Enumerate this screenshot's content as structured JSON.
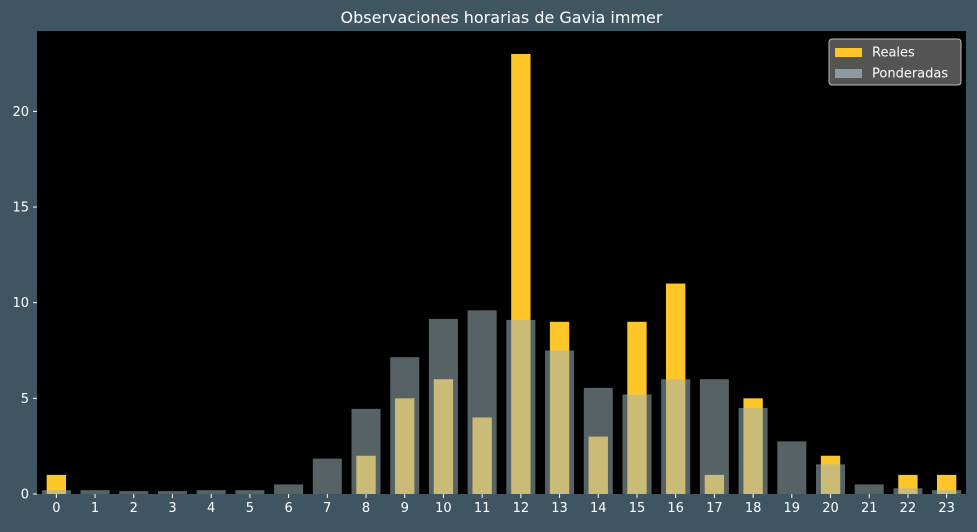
{
  "chart_data": {
    "type": "bar",
    "title": "Observaciones horarias de Gavia immer",
    "xlabel": "",
    "ylabel": "",
    "categories": [
      "0",
      "1",
      "2",
      "3",
      "4",
      "5",
      "6",
      "7",
      "8",
      "9",
      "10",
      "11",
      "12",
      "13",
      "14",
      "15",
      "16",
      "17",
      "18",
      "19",
      "20",
      "21",
      "22",
      "23"
    ],
    "series": [
      {
        "name": "Reales",
        "color": "#ffc629",
        "values": [
          1,
          0,
          0,
          0,
          0,
          0,
          0,
          0,
          2,
          5,
          6,
          4,
          23,
          9,
          3,
          9,
          11,
          1,
          5,
          0,
          2,
          0,
          1,
          1
        ]
      },
      {
        "name": "Ponderadas",
        "color": "#9fb3b8",
        "values": [
          0.2,
          0.2,
          0.15,
          0.15,
          0.2,
          0.2,
          0.5,
          1.85,
          4.45,
          7.15,
          9.15,
          9.6,
          9.1,
          7.5,
          5.55,
          5.2,
          6.0,
          6.0,
          4.5,
          2.75,
          1.55,
          0.5,
          0.3,
          0.2
        ]
      }
    ],
    "ylim": [
      0,
      24.2
    ],
    "yticks": [
      0,
      5,
      10,
      15,
      20
    ],
    "grid": false,
    "legend_position": "top-right",
    "colors": {
      "figure_background": "#3f5562",
      "plot_background": "#000000",
      "text": "#ffffff"
    }
  }
}
